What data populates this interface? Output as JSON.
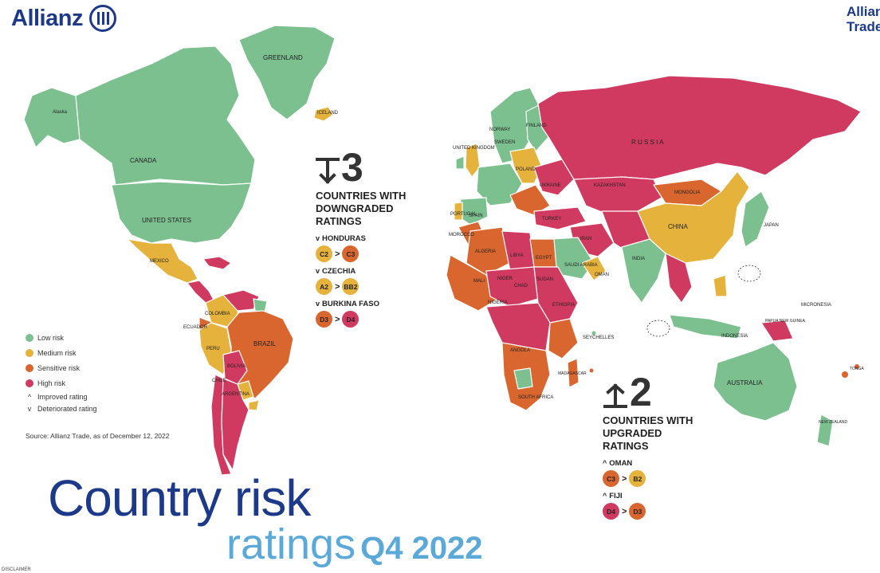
{
  "brand": {
    "name": "Allianz",
    "right_text": "Allianz Trade"
  },
  "headline": {
    "line1": "Country risk",
    "line2": "ratings",
    "period": "Q4 2022"
  },
  "colors": {
    "low": "#7cc08f",
    "medium": "#e5b23c",
    "sensitive": "#d9662e",
    "high": "#d13a60",
    "ocean": "#ffffff"
  },
  "legend": {
    "items": [
      {
        "label": "Low risk",
        "color": "#7cc08f"
      },
      {
        "label": "Medium risk",
        "color": "#e5b23c"
      },
      {
        "label": "Sensitive risk",
        "color": "#d9662e"
      },
      {
        "label": "High risk",
        "color": "#d13a60"
      }
    ],
    "improved": {
      "glyph": "^",
      "label": "Improved rating"
    },
    "deteriorated": {
      "glyph": "v",
      "label": "Deteriorated rating"
    }
  },
  "source": "Source: Allianz Trade, as of December 12, 2022",
  "downgraded": {
    "count": "3",
    "icon": "down-arrow-icon",
    "title": [
      "COUNTRIES WITH",
      "DOWNGRADED",
      "RATINGS"
    ],
    "countries": [
      {
        "name": "HONDURAS",
        "from": "C2",
        "to": "C3",
        "from_color": "#e5b23c",
        "to_color": "#d9662e"
      },
      {
        "name": "CZECHIA",
        "from": "A2",
        "to": "BB2",
        "from_color": "#e5b23c",
        "to_color": "#e5b23c"
      },
      {
        "name": "BURKINA FASO",
        "from": "D3",
        "to": "D4",
        "from_color": "#d9662e",
        "to_color": "#d13a60"
      }
    ]
  },
  "upgraded": {
    "count": "2",
    "icon": "up-arrow-icon",
    "title": [
      "COUNTRIES WITH",
      "UPGRADED",
      "RATINGS"
    ],
    "countries": [
      {
        "name": "OMAN",
        "from": "C3",
        "to": "B2",
        "from_color": "#d9662e",
        "to_color": "#e5b23c"
      },
      {
        "name": "FIJI",
        "from": "D4",
        "to": "D3",
        "from_color": "#d13a60",
        "to_color": "#d9662e"
      }
    ]
  },
  "map_labels": {
    "greenland": "GREENLAND",
    "alaska": "Alaska",
    "canada": "CANADA",
    "usa": "UNITED STATES",
    "mexico": "MEXICO",
    "brazil": "BRAZIL",
    "colombia": "COLOMBIA",
    "peru": "PERU",
    "bolivia": "BOLIVIA",
    "argentina": "ARGENTINA",
    "chile": "CHILE",
    "ecuador": "ECUADOR",
    "iceland": "ICELAND",
    "russia": "R U S S I A",
    "kazakhstan": "KAZAKHSTAN",
    "mongolia": "MONGOLIA",
    "china": "CHINA",
    "india": "INDIA",
    "japan": "JAPAN",
    "iran": "IRAN",
    "turkey": "TURKEY",
    "ukraine": "UKRAINE",
    "algeria": "ALGERIA",
    "libya": "LIBYA",
    "egypt": "EGYPT",
    "mali": "MALI",
    "niger": "NIGER",
    "chad": "CHAD",
    "sudan": "SUDAN",
    "ethiopia": "ETHIOPIA",
    "angola": "ANGOLA",
    "south_africa": "SOUTH AFRICA",
    "madagascar": "MADAGASCAR",
    "australia": "AUSTRALIA",
    "new_zealand": "NEW ZEALAND",
    "seychelles": "SEYCHELLES",
    "saudi_arabia": "SAUDI ARABIA",
    "oman": "OMAN",
    "indonesia": "INDONESIA",
    "finland": "FINLAND",
    "sweden": "SWEDEN",
    "norway": "NORWAY",
    "spain": "SPAIN",
    "portugal": "PORTUGAL",
    "uk": "UNITED KINGDOM",
    "poland": "POLAND",
    "morocco": "MOROCCO",
    "nigeria": "NIGERIA",
    "micronesia": "MICRONESIA",
    "papua": "PAPUA NEW GUINEA",
    "tonga": "TONGA"
  },
  "disclaimer": "DISCLAIMER"
}
